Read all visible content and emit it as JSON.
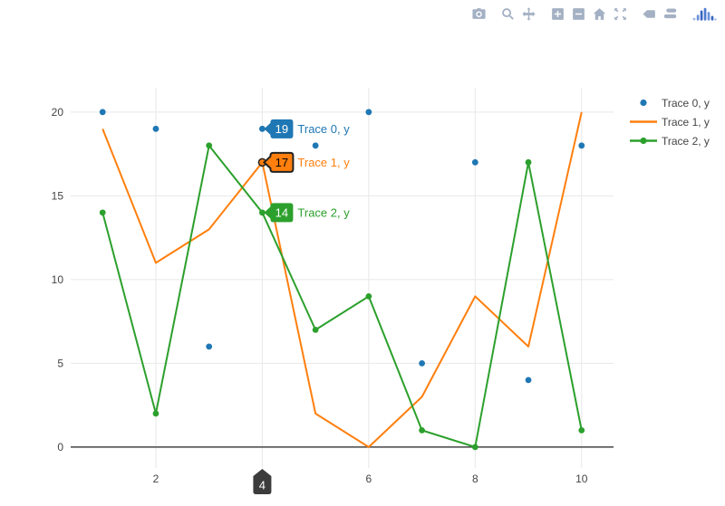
{
  "page": {
    "background": "#ffffff"
  },
  "modebar": {
    "icon_color": "#a4b1c4",
    "groups": [
      [
        "camera-icon"
      ],
      [
        "zoom-icon",
        "pan-icon"
      ],
      [
        "zoom-in-icon",
        "zoom-out-icon",
        "home-icon",
        "autoscale-icon"
      ],
      [
        "hover-closest-icon",
        "hover-compare-icon"
      ],
      [
        "plotly-logo-icon"
      ]
    ]
  },
  "chart_data": {
    "type": "line",
    "title": "",
    "xlabel": "",
    "ylabel": "",
    "x": [
      1,
      2,
      3,
      4,
      5,
      6,
      7,
      8,
      9,
      10
    ],
    "series": [
      {
        "name": "Trace 0, y",
        "mode": "markers",
        "color": "#1f77b4",
        "values": [
          20,
          19,
          6,
          19,
          18,
          20,
          5,
          17,
          4,
          18
        ]
      },
      {
        "name": "Trace 1, y",
        "mode": "lines",
        "color": "#ff7f0e",
        "values": [
          19,
          11,
          13,
          17,
          2,
          0,
          3,
          9,
          6,
          20
        ]
      },
      {
        "name": "Trace 2, y",
        "mode": "lines+markers",
        "color": "#2ca02c",
        "values": [
          14,
          2,
          18,
          14,
          7,
          9,
          1,
          0,
          17,
          1
        ]
      }
    ],
    "xticks": [
      2,
      4,
      6,
      8,
      10
    ],
    "yticks": [
      0,
      5,
      10,
      15,
      20
    ],
    "xrange": [
      0.4,
      10.6
    ],
    "yrange": [
      -1.25,
      21.45
    ],
    "grid": true,
    "gridline_color": "#e8e8e8",
    "zeroline_color": "#444444",
    "legend_position": "right"
  },
  "legend": {
    "items": [
      {
        "label": "Trace 0, y",
        "color": "#1f77b4",
        "mode": "markers"
      },
      {
        "label": "Trace 1, y",
        "color": "#ff7f0e",
        "mode": "lines"
      },
      {
        "label": "Trace 2, y",
        "color": "#2ca02c",
        "mode": "lines+markers"
      }
    ]
  },
  "hover": {
    "x": 4,
    "labels": [
      {
        "value": "19",
        "trace": "Trace 0, y",
        "y": 19,
        "bg": "#1f77b4",
        "fg": "#ffffff",
        "border": ""
      },
      {
        "value": "17",
        "trace": "Trace 1, y",
        "y": 17,
        "bg": "#ff7f0e",
        "fg": "#000000",
        "border": "#222222"
      },
      {
        "value": "14",
        "trace": "Trace 2, y",
        "y": 14,
        "bg": "#2ca02c",
        "fg": "#ffffff",
        "border": ""
      }
    ],
    "axis_tag": {
      "value": "4",
      "bg": "#3c3c3c",
      "fg": "#ffffff"
    }
  }
}
